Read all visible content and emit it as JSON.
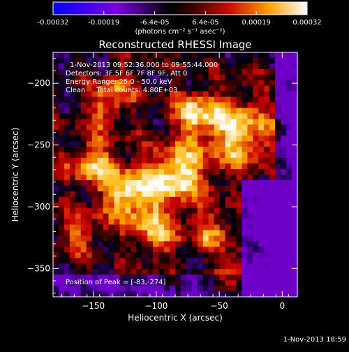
{
  "chart_data": {
    "type": "heatmap",
    "title": "Reconstructed RHESSI Image",
    "xlabel": "Heliocentric X (arcsec)",
    "ylabel": "Heliocentric Y (arcsec)",
    "xlim": [
      -182,
      12
    ],
    "ylim": [
      -373,
      -175
    ],
    "xticks": [
      -150,
      -100,
      -50,
      0
    ],
    "yticks": [
      -200,
      -250,
      -300,
      -350
    ],
    "xtick_labels": [
      "−150",
      "−100",
      "−50",
      "0"
    ],
    "ytick_labels": [
      "−200",
      "−250",
      "−300",
      "−350"
    ],
    "colorbar": {
      "range": [
        -0.00032,
        0.00032
      ],
      "tick_labels": [
        "-0.00032",
        "-0.00019",
        "-6.4e-05",
        "6.4e-05",
        "0.00019",
        "0.00032"
      ],
      "unit_label": "(photons cm⁻² s⁻¹ asec⁻²)"
    },
    "annotations": {
      "time_range": "1-Nov-2013 09:52:36.000 to 09:55:44.000",
      "detectors": "Detectors: 3F 5F 6F 7F 8F 9F, Att 0",
      "energy": "Energy Range: 25.0 - 50.0 keV",
      "method": "Clean     Total counts: 4.80E+03",
      "peak": "Position of Peak = [-83,-274]"
    },
    "peak": [
      -83,
      -274
    ],
    "grid": false
  },
  "footer": {
    "timestamp": "1-Nov-2013 18:59"
  }
}
